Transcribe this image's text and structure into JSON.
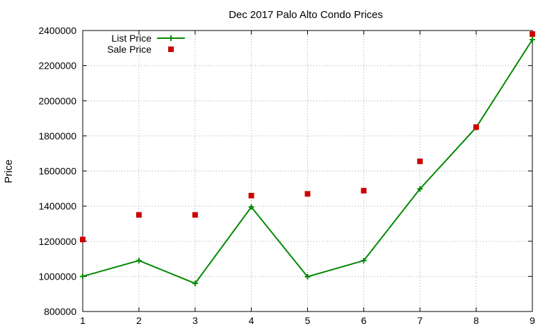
{
  "chart_data": {
    "type": "line",
    "title": "Dec 2017 Palo Alto Condo Prices",
    "xlabel": "",
    "ylabel": "Price",
    "x": [
      1,
      2,
      3,
      4,
      5,
      6,
      7,
      8,
      9
    ],
    "xlim": [
      1,
      9
    ],
    "ylim": [
      800000,
      2400000
    ],
    "yticks": [
      800000,
      1000000,
      1200000,
      1400000,
      1600000,
      1800000,
      2000000,
      2200000,
      2400000
    ],
    "xticks": [
      1,
      2,
      3,
      4,
      5,
      6,
      7,
      8,
      9
    ],
    "grid": true,
    "legend_position": "top-left",
    "series": [
      {
        "name": "List Price",
        "style": "line with plus markers",
        "color": "#008800",
        "values": [
          1000000,
          1090000,
          960000,
          1395000,
          998000,
          1090000,
          1498000,
          1848000,
          2348000
        ]
      },
      {
        "name": "Sale Price",
        "style": "square markers",
        "color": "#cc0000",
        "values": [
          1210000,
          1350000,
          1350000,
          1460000,
          1470000,
          1488000,
          1655000,
          1850000,
          2380000
        ]
      }
    ]
  }
}
